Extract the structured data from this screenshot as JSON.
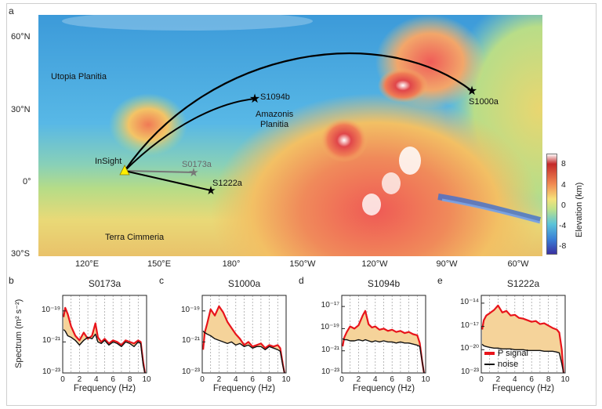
{
  "panel_labels": {
    "a": "a",
    "b": "b",
    "c": "c",
    "d": "d",
    "e": "e"
  },
  "map": {
    "lat_labels": [
      "60°N",
      "30°N",
      "0°",
      "30°S"
    ],
    "lon_labels": [
      "120°E",
      "150°E",
      "180°",
      "150°W",
      "120°W",
      "90°W",
      "60°W"
    ],
    "region_labels": {
      "utopia": "Utopia Planitia",
      "amazonis_1": "Amazonis",
      "amazonis_2": "Planitia",
      "terra": "Terra Cimmeria"
    },
    "insight_label": "InSight",
    "events": {
      "s1000a": "S1000a",
      "s1094b": "S1094b",
      "s0173a": "S0173a",
      "s1222a": "S1222a"
    },
    "colorbar": {
      "title": "Elevation (km)",
      "ticks": [
        "8",
        "4",
        "0",
        "-4",
        "-8"
      ]
    }
  },
  "spectra": {
    "ylabel": "Spectrum (m² s⁻²)",
    "xlabel": "Frequency (Hz)",
    "xticks": [
      "0",
      "2",
      "4",
      "6",
      "8",
      "10"
    ],
    "legend": {
      "signal": "P signal",
      "noise": "noise"
    },
    "colors": {
      "signal": "#e8141b",
      "noise": "#111111",
      "fill": "#f5d39a"
    }
  },
  "chart_data": [
    {
      "type": "line",
      "title": "S0173a",
      "xlabel": "Frequency (Hz)",
      "ylabel": "Spectrum (m² s⁻²)",
      "yscale": "log",
      "xlim": [
        0,
        10
      ],
      "ylim_exp": [
        -23,
        -18
      ],
      "ytick_exps": [
        -23,
        -21,
        -19
      ],
      "x": [
        0.1,
        0.3,
        0.6,
        1.0,
        1.5,
        2.0,
        2.5,
        3.0,
        3.5,
        3.9,
        4.2,
        4.6,
        5.0,
        5.5,
        6.0,
        6.5,
        7.0,
        7.5,
        8.0,
        8.5,
        9.0,
        9.3,
        9.6,
        9.8
      ],
      "series": [
        {
          "name": "P signal",
          "log_values": [
            -19.4,
            -18.8,
            -19.2,
            -20.0,
            -20.6,
            -20.9,
            -20.4,
            -20.8,
            -20.6,
            -19.8,
            -20.7,
            -21.0,
            -20.8,
            -21.1,
            -20.9,
            -21.0,
            -21.2,
            -20.9,
            -21.0,
            -21.1,
            -20.9,
            -21.0,
            -22.3,
            -23.0
          ]
        },
        {
          "name": "noise",
          "log_values": [
            -20.2,
            -20.3,
            -20.6,
            -20.7,
            -20.9,
            -21.2,
            -20.9,
            -20.7,
            -20.8,
            -20.5,
            -21.0,
            -21.1,
            -20.9,
            -21.2,
            -21.0,
            -21.1,
            -21.3,
            -21.0,
            -21.1,
            -21.3,
            -21.0,
            -21.1,
            -22.5,
            -23.0
          ]
        }
      ]
    },
    {
      "type": "line",
      "title": "S1000a",
      "xlabel": "Frequency (Hz)",
      "ylabel": "",
      "yscale": "log",
      "xlim": [
        0,
        10
      ],
      "ylim_exp": [
        -23,
        -18
      ],
      "ytick_exps": [
        -23,
        -21,
        -19
      ],
      "x": [
        0.1,
        0.3,
        0.6,
        1.0,
        1.5,
        2.0,
        2.5,
        3.0,
        3.5,
        4.0,
        4.5,
        5.0,
        5.5,
        6.0,
        6.5,
        7.0,
        7.5,
        8.0,
        8.5,
        9.0,
        9.3,
        9.6,
        9.8
      ],
      "series": [
        {
          "name": "P signal",
          "log_values": [
            -21.5,
            -20.4,
            -19.8,
            -18.9,
            -19.3,
            -18.7,
            -19.1,
            -19.7,
            -20.1,
            -20.5,
            -20.8,
            -21.2,
            -21.0,
            -21.3,
            -21.2,
            -21.1,
            -21.4,
            -21.2,
            -21.3,
            -21.2,
            -21.4,
            -22.4,
            -23.0
          ]
        },
        {
          "name": "noise",
          "log_values": [
            -20.3,
            -20.4,
            -20.5,
            -20.6,
            -20.8,
            -20.9,
            -21.0,
            -21.1,
            -21.0,
            -21.2,
            -21.1,
            -21.3,
            -21.2,
            -21.4,
            -21.3,
            -21.3,
            -21.5,
            -21.3,
            -21.4,
            -21.5,
            -21.6,
            -22.5,
            -23.0
          ]
        }
      ]
    },
    {
      "type": "line",
      "title": "S1094b",
      "xlabel": "Frequency (Hz)",
      "ylabel": "",
      "yscale": "log",
      "xlim": [
        0,
        10
      ],
      "ylim_exp": [
        -23,
        -16
      ],
      "ytick_exps": [
        -23,
        -21,
        -19,
        -17
      ],
      "x": [
        0.1,
        0.3,
        0.6,
        1.0,
        1.5,
        2.0,
        2.5,
        2.8,
        3.2,
        3.6,
        4.0,
        4.5,
        5.0,
        5.5,
        6.0,
        6.5,
        7.0,
        7.5,
        8.0,
        8.5,
        9.0,
        9.3,
        9.6,
        9.8
      ],
      "series": [
        {
          "name": "P signal",
          "log_values": [
            -20.6,
            -19.8,
            -19.3,
            -18.8,
            -19.0,
            -18.7,
            -17.8,
            -17.4,
            -18.6,
            -18.9,
            -18.8,
            -19.1,
            -19.0,
            -19.2,
            -19.1,
            -19.3,
            -19.2,
            -19.4,
            -19.3,
            -19.5,
            -19.6,
            -20.3,
            -22.0,
            -23.0
          ]
        },
        {
          "name": "noise",
          "log_values": [
            -19.9,
            -20.0,
            -20.0,
            -20.1,
            -20.1,
            -20.0,
            -20.1,
            -20.0,
            -20.1,
            -20.2,
            -20.1,
            -20.2,
            -20.1,
            -20.2,
            -20.2,
            -20.3,
            -20.2,
            -20.3,
            -20.3,
            -20.4,
            -20.5,
            -20.6,
            -22.0,
            -23.0
          ]
        }
      ]
    },
    {
      "type": "line",
      "title": "S1222a",
      "xlabel": "Frequency (Hz)",
      "ylabel": "",
      "yscale": "log",
      "xlim": [
        0,
        10
      ],
      "ylim_exp": [
        -23,
        -13
      ],
      "ytick_exps": [
        -23,
        -20,
        -17,
        -14
      ],
      "x": [
        0.1,
        0.3,
        0.6,
        1.0,
        1.5,
        2.0,
        2.5,
        3.0,
        3.5,
        4.0,
        4.5,
        5.0,
        5.5,
        6.0,
        6.5,
        7.0,
        7.5,
        8.0,
        8.5,
        9.0,
        9.3,
        9.6,
        9.8
      ],
      "series": [
        {
          "name": "P signal",
          "log_values": [
            -17.4,
            -16.2,
            -15.6,
            -15.3,
            -14.9,
            -14.3,
            -15.2,
            -15.0,
            -15.6,
            -15.5,
            -15.9,
            -16.0,
            -16.2,
            -16.4,
            -16.3,
            -16.7,
            -16.6,
            -16.9,
            -17.2,
            -17.4,
            -17.8,
            -20.0,
            -23.0
          ]
        },
        {
          "name": "noise",
          "log_values": [
            -19.3,
            -19.5,
            -19.6,
            -19.7,
            -19.8,
            -19.8,
            -19.9,
            -19.9,
            -19.9,
            -20.0,
            -20.0,
            -20.0,
            -20.1,
            -20.1,
            -20.1,
            -20.1,
            -20.2,
            -20.2,
            -20.2,
            -20.3,
            -20.4,
            -21.8,
            -23.0
          ]
        }
      ]
    }
  ]
}
